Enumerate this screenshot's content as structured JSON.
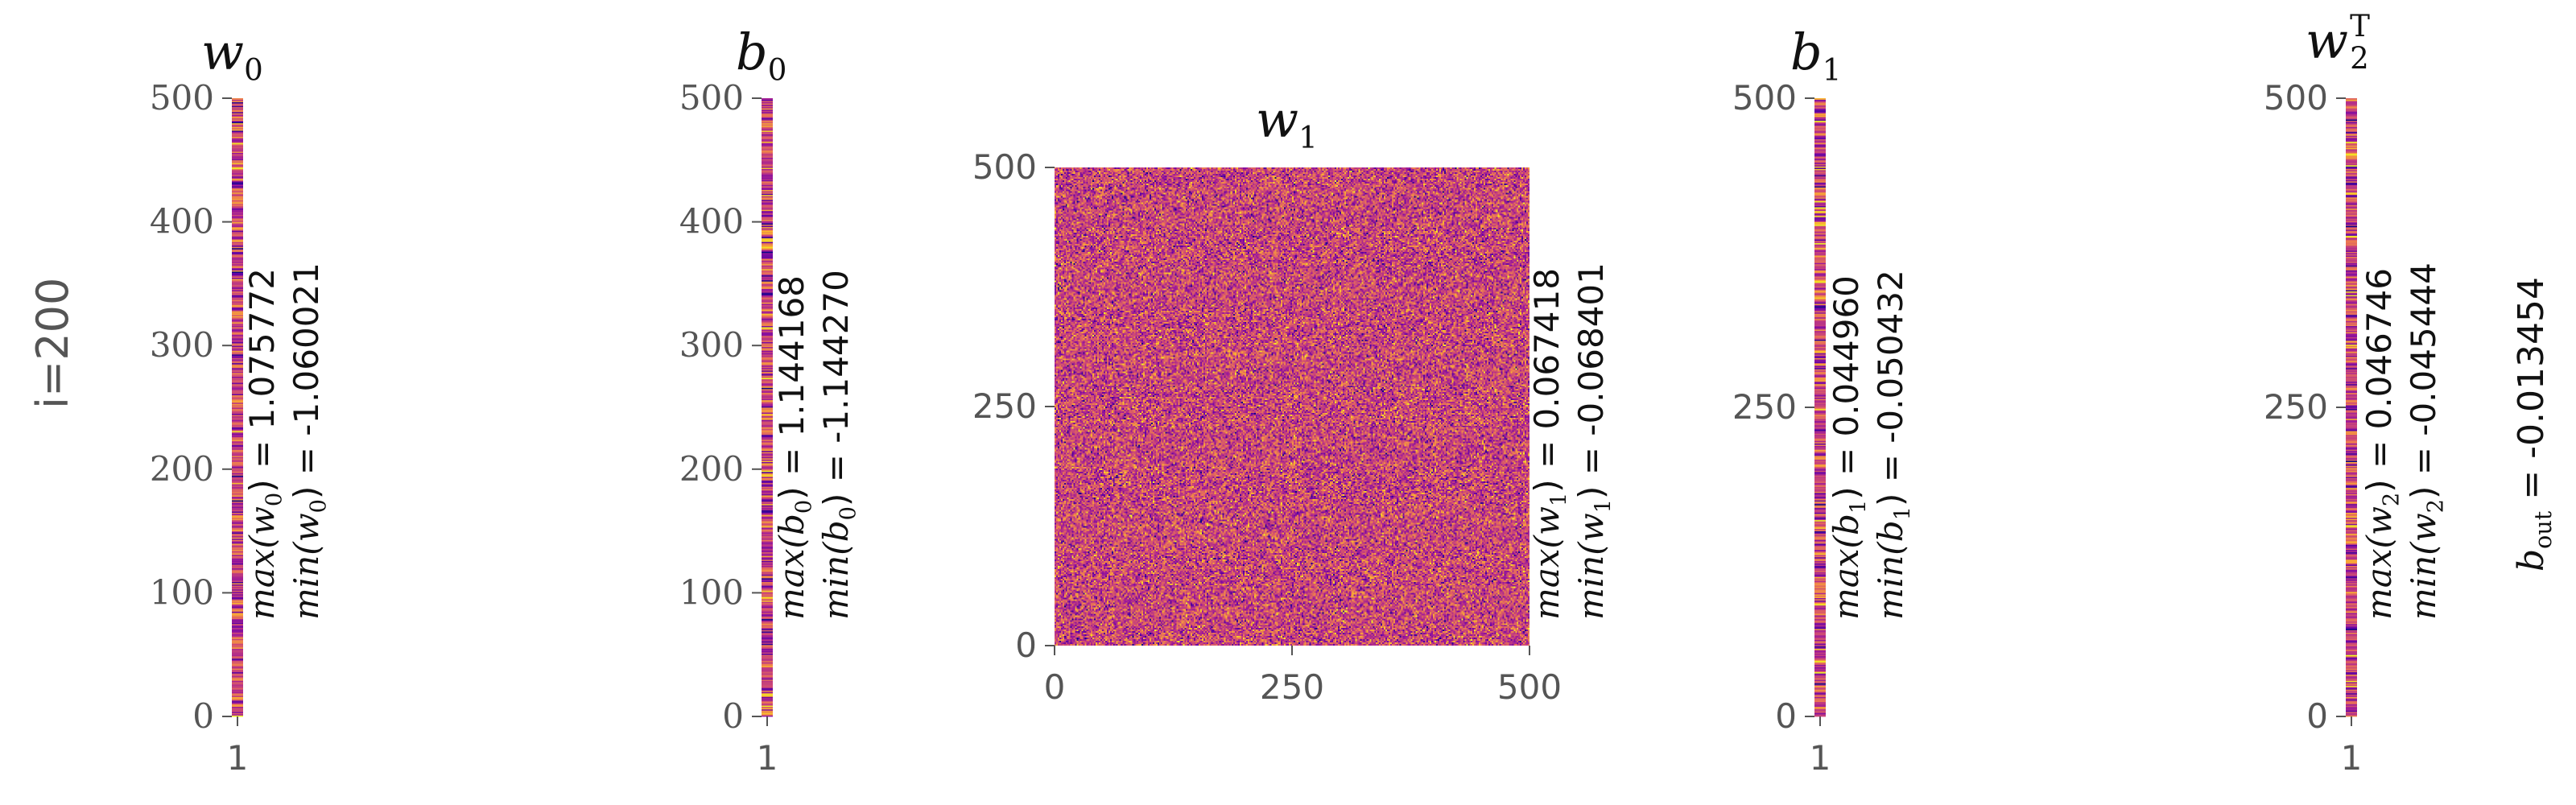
{
  "figure": {
    "row_label": "i=200",
    "colormap": [
      "#0d0887",
      "#5b02a3",
      "#9a179b",
      "#cb4678",
      "#eb7852",
      "#fbb32f",
      "#f0f921"
    ]
  },
  "chart_data": [
    {
      "id": "w0",
      "type": "heatmap",
      "title_base": "w",
      "title_sub": "0",
      "title_sup": "",
      "shape": [
        500,
        1
      ],
      "yticks": [
        "0",
        "100",
        "200",
        "300",
        "400",
        "500"
      ],
      "xticks": [
        "1"
      ],
      "ylim": [
        0,
        500
      ],
      "stats": {
        "max_label": "max(w",
        "max_sub": "0",
        "max_value": ") = 1.075772",
        "min_label": "min(w",
        "min_sub": "0",
        "min_value": ") = -1.060021",
        "max": 1.075772,
        "min": -1.060021
      }
    },
    {
      "id": "b0",
      "type": "heatmap",
      "title_base": "b",
      "title_sub": "0",
      "title_sup": "",
      "shape": [
        500,
        1
      ],
      "yticks": [
        "0",
        "100",
        "200",
        "300",
        "400",
        "500"
      ],
      "xticks": [
        "1"
      ],
      "ylim": [
        0,
        500
      ],
      "stats": {
        "max_label": "max(b",
        "max_sub": "0",
        "max_value": ") = 1.144168",
        "min_label": "min(b",
        "min_sub": "0",
        "min_value": ") = -1.144270",
        "max": 1.144168,
        "min": -1.14427
      }
    },
    {
      "id": "w1",
      "type": "heatmap",
      "title_base": "w",
      "title_sub": "1",
      "title_sup": "",
      "shape": [
        500,
        500
      ],
      "yticks": [
        "0",
        "250",
        "500"
      ],
      "xticks": [
        "0",
        "250",
        "500"
      ],
      "ylim": [
        0,
        500
      ],
      "xlim": [
        0,
        500
      ],
      "stats": {
        "max_label": "max(w",
        "max_sub": "1",
        "max_value": ") = 0.067418",
        "min_label": "min(w",
        "min_sub": "1",
        "min_value": ") = -0.068401",
        "max": 0.067418,
        "min": -0.068401
      }
    },
    {
      "id": "b1",
      "type": "heatmap",
      "title_base": "b",
      "title_sub": "1",
      "title_sup": "",
      "shape": [
        500,
        1
      ],
      "yticks": [
        "0",
        "250",
        "500"
      ],
      "xticks": [
        "1"
      ],
      "ylim": [
        0,
        500
      ],
      "stats": {
        "max_label": "max(b",
        "max_sub": "1",
        "max_value": ") = 0.044960",
        "min_label": "min(b",
        "min_sub": "1",
        "min_value": ") = -0.050432",
        "max": 0.04496,
        "min": -0.050432
      }
    },
    {
      "id": "w2T",
      "type": "heatmap",
      "title_base": "w",
      "title_sub": "2",
      "title_sup": "T",
      "shape": [
        500,
        1
      ],
      "yticks": [
        "0",
        "250",
        "500"
      ],
      "xticks": [
        "1"
      ],
      "ylim": [
        0,
        500
      ],
      "stats": {
        "max_label": "max(w",
        "max_sub": "2",
        "max_value": ") = 0.046746",
        "min_label": "min(w",
        "min_sub": "2",
        "min_value": ") = -0.045444",
        "max": 0.046746,
        "min": -0.045444
      }
    }
  ],
  "b_out": {
    "label_base": "b",
    "label_sub": "out",
    "value_text": " = -0.013454",
    "value": -0.013454
  }
}
